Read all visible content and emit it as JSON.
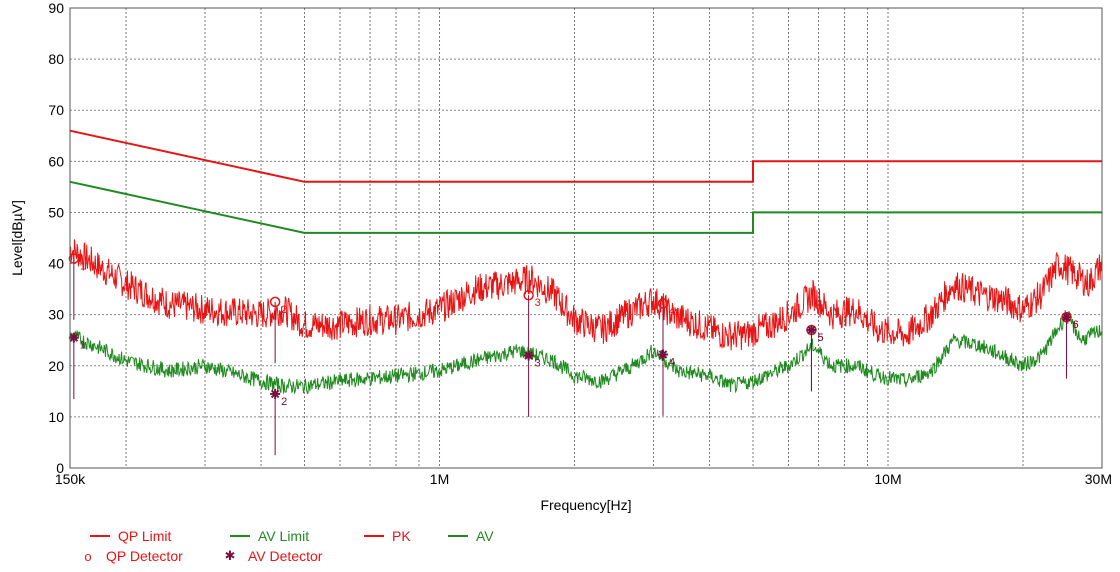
{
  "chart_data": {
    "type": "line",
    "title": "",
    "xlabel": "Frequency[Hz]",
    "ylabel": "Level[dBµV]",
    "xscale": "log",
    "xlim": [
      150000,
      30000000
    ],
    "ylim": [
      0,
      90
    ],
    "grid": true,
    "x_tick_labels": [
      {
        "value": 150000,
        "label": "150k"
      },
      {
        "value": 1000000,
        "label": "1M"
      },
      {
        "value": 10000000,
        "label": "10M"
      },
      {
        "value": 30000000,
        "label": "30M"
      }
    ],
    "y_tick_labels": [
      0,
      10,
      20,
      30,
      40,
      50,
      60,
      70,
      80,
      90
    ],
    "colors": {
      "qp": "#e81414",
      "av": "#1f8a1f",
      "detector": "#7a1040"
    },
    "limits": [
      {
        "name": "QP Limit",
        "color": "#e81414",
        "points": [
          [
            150000,
            66
          ],
          [
            500000,
            56
          ],
          [
            5000000,
            56
          ],
          [
            5000000,
            60
          ],
          [
            30000000,
            60
          ]
        ]
      },
      {
        "name": "AV Limit",
        "color": "#1f8a1f",
        "points": [
          [
            150000,
            56
          ],
          [
            500000,
            46
          ],
          [
            5000000,
            46
          ],
          [
            5000000,
            50
          ],
          [
            30000000,
            50
          ]
        ]
      }
    ],
    "series": [
      {
        "name": "PK",
        "color": "#e81414",
        "points": [
          [
            150000,
            43
          ],
          [
            170000,
            40
          ],
          [
            200000,
            36
          ],
          [
            250000,
            32
          ],
          [
            300000,
            31
          ],
          [
            400000,
            30
          ],
          [
            450000,
            31
          ],
          [
            500000,
            28
          ],
          [
            600000,
            28
          ],
          [
            700000,
            29
          ],
          [
            800000,
            29
          ],
          [
            900000,
            30
          ],
          [
            1000000,
            31
          ],
          [
            1200000,
            35
          ],
          [
            1400000,
            36
          ],
          [
            1600000,
            37
          ],
          [
            1800000,
            34
          ],
          [
            2000000,
            29
          ],
          [
            2300000,
            27
          ],
          [
            2600000,
            30
          ],
          [
            3000000,
            33
          ],
          [
            3300000,
            30
          ],
          [
            3800000,
            28
          ],
          [
            4300000,
            26
          ],
          [
            4800000,
            26
          ],
          [
            5500000,
            28
          ],
          [
            6000000,
            30
          ],
          [
            6800000,
            34
          ],
          [
            7500000,
            30
          ],
          [
            8500000,
            31
          ],
          [
            9500000,
            27
          ],
          [
            11000000,
            26
          ],
          [
            12500000,
            30
          ],
          [
            14000000,
            36
          ],
          [
            16000000,
            34
          ],
          [
            18000000,
            33
          ],
          [
            20000000,
            31
          ],
          [
            22000000,
            34
          ],
          [
            24000000,
            40
          ],
          [
            26000000,
            38
          ],
          [
            28000000,
            36
          ],
          [
            30000000,
            40
          ]
        ],
        "noise": 3
      },
      {
        "name": "AV",
        "color": "#1f8a1f",
        "points": [
          [
            150000,
            26
          ],
          [
            170000,
            24
          ],
          [
            200000,
            21
          ],
          [
            250000,
            19
          ],
          [
            300000,
            20
          ],
          [
            400000,
            17
          ],
          [
            450000,
            16
          ],
          [
            500000,
            16
          ],
          [
            600000,
            17
          ],
          [
            800000,
            18
          ],
          [
            1000000,
            19
          ],
          [
            1200000,
            21
          ],
          [
            1500000,
            23
          ],
          [
            1800000,
            21
          ],
          [
            2000000,
            18
          ],
          [
            2300000,
            17
          ],
          [
            2700000,
            20
          ],
          [
            3000000,
            23
          ],
          [
            3400000,
            19
          ],
          [
            4000000,
            18
          ],
          [
            4500000,
            16
          ],
          [
            5000000,
            17
          ],
          [
            6000000,
            20
          ],
          [
            6800000,
            24
          ],
          [
            7500000,
            20
          ],
          [
            8500000,
            20
          ],
          [
            9500000,
            18
          ],
          [
            11000000,
            17
          ],
          [
            12500000,
            19
          ],
          [
            14000000,
            25
          ],
          [
            16000000,
            24
          ],
          [
            18000000,
            22
          ],
          [
            20000000,
            20
          ],
          [
            22000000,
            22
          ],
          [
            25000000,
            30
          ],
          [
            27000000,
            25
          ],
          [
            30000000,
            27
          ]
        ],
        "noise": 1.5
      }
    ],
    "qp_detector": [
      {
        "label": "1",
        "x": 153000,
        "y": 41
      },
      {
        "label": "2",
        "x": 430000,
        "y": 32.5
      },
      {
        "label": "3",
        "x": 1580000,
        "y": 33.8
      },
      {
        "label": "4",
        "x": 3150000,
        "y": 32.2
      },
      {
        "label": "5",
        "x": 6750000,
        "y": 27
      },
      {
        "label": "6",
        "x": 25000000,
        "y": 29.5
      }
    ],
    "av_detector": [
      {
        "label": "1",
        "x": 153000,
        "y": 25.5
      },
      {
        "label": "2",
        "x": 430000,
        "y": 14.5
      },
      {
        "label": "3",
        "x": 1580000,
        "y": 22
      },
      {
        "label": "4",
        "x": 3150000,
        "y": 22.2
      },
      {
        "label": "5",
        "x": 6750000,
        "y": 27
      },
      {
        "label": "6",
        "x": 25000000,
        "y": 29.5
      }
    ],
    "legend": {
      "placement": "bottom-left",
      "qp_limit": "QP Limit",
      "av_limit": "AV Limit",
      "pk": "PK",
      "av": "AV",
      "qp_detector": "QP Detector",
      "av_detector": "AV Detector",
      "qp_symbol": "o",
      "av_symbol": "✱"
    }
  }
}
